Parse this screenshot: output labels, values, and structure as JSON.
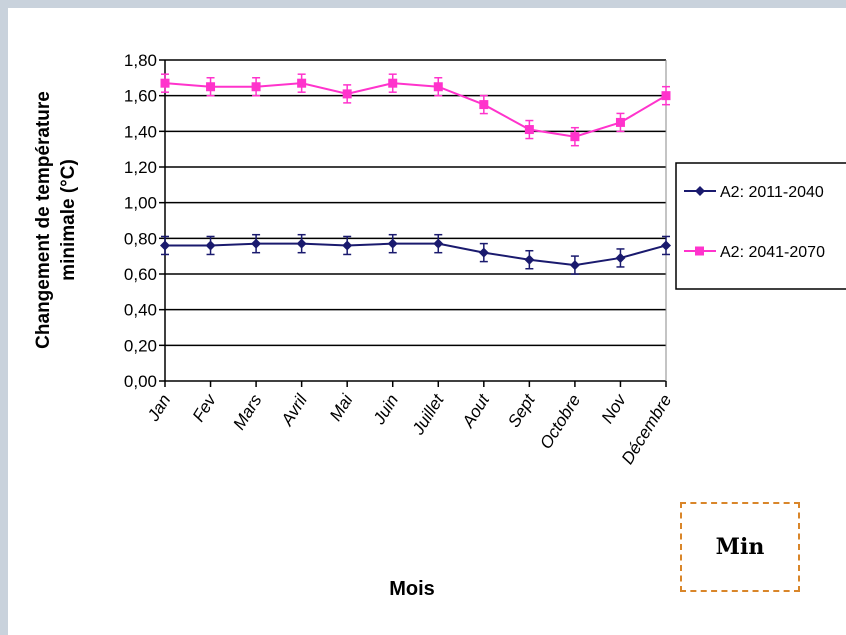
{
  "chart_data": {
    "type": "line",
    "categories": [
      "Jan",
      "Fev",
      "Mars",
      "Avril",
      "Mai",
      "Juin",
      "Juillet",
      "Aout",
      "Sept",
      "Octobre",
      "Nov",
      "Décembre"
    ],
    "series": [
      {
        "name": "A2: 2011-2040",
        "color": "#1a1a6e",
        "marker": "diamond",
        "values": [
          0.76,
          0.76,
          0.77,
          0.77,
          0.76,
          0.77,
          0.77,
          0.72,
          0.68,
          0.65,
          0.69,
          0.76
        ]
      },
      {
        "name": "A2: 2041-2070",
        "color": "#ff33cc",
        "marker": "square",
        "values": [
          1.67,
          1.65,
          1.65,
          1.67,
          1.61,
          1.67,
          1.65,
          1.55,
          1.41,
          1.37,
          1.45,
          1.6
        ]
      }
    ],
    "y_ticks": [
      "0,00",
      "0,20",
      "0,40",
      "0,60",
      "0,80",
      "1,00",
      "1,20",
      "1,40",
      "1,60",
      "1,80"
    ],
    "ylim": [
      0,
      1.8
    ],
    "ylabel_line1": "Changement de température",
    "ylabel_line2": "minimale (°C)",
    "xlabel": "Mois",
    "grid": true,
    "legend_position": "right"
  },
  "annotation": {
    "text": "Min"
  }
}
